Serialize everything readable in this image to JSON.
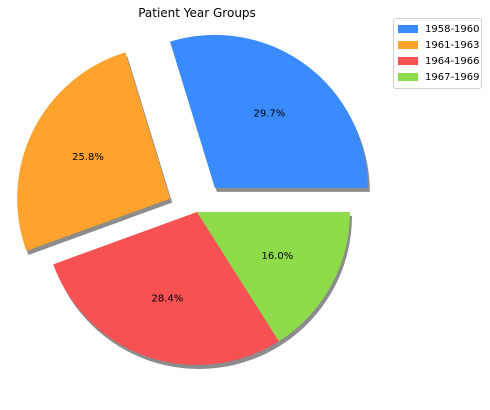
{
  "chart_data": {
    "type": "pie",
    "title": "Patient Year Groups",
    "legend_position": "top-right",
    "shadow": true,
    "slices": [
      {
        "label": "1958-1960",
        "value": 29.7,
        "pct_label": "29.7%",
        "color": "#3a8bff",
        "exploded": true
      },
      {
        "label": "1961-1963",
        "value": 25.8,
        "pct_label": "25.8%",
        "color": "#ffa22e",
        "exploded": true
      },
      {
        "label": "1964-1966",
        "value": 28.4,
        "pct_label": "28.4%",
        "color": "#f75153",
        "exploded": false
      },
      {
        "label": "1967-1969",
        "value": 16.0,
        "pct_label": "16.0%",
        "color": "#8fdc4a",
        "exploded": false
      }
    ]
  }
}
